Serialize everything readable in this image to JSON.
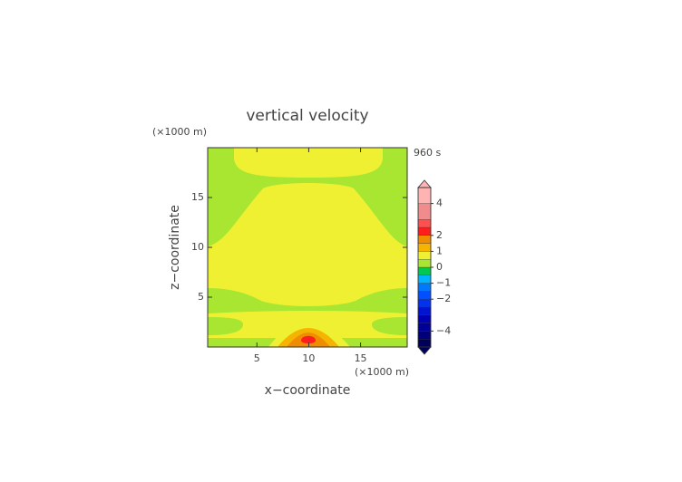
{
  "chart_data": {
    "type": "contour",
    "title": "vertical velocity",
    "time_label": "960 s",
    "xlabel": "x−coordinate",
    "ylabel": "z−coordinate",
    "x_unit": "(×1000 m)",
    "y_unit": "(×1000 m)",
    "xlim": [
      0.25,
      19.5
    ],
    "xticks": [
      5,
      10,
      15
    ],
    "ylim": [
      0,
      20
    ],
    "yticks": [
      5,
      10,
      15
    ],
    "colorbar": {
      "lim": [
        -5,
        5
      ],
      "levels": [
        -5,
        -4.5,
        -4,
        -3.5,
        -3,
        -2.5,
        -2,
        -1.5,
        -1,
        -0.5,
        0,
        0.5,
        1,
        1.5,
        2,
        2.5,
        3,
        4,
        5
      ],
      "colors": [
        "#00005a",
        "#000078",
        "#000096",
        "#0000b4",
        "#0014d2",
        "#0032f0",
        "#0050ff",
        "#0078ff",
        "#00b4ff",
        "#00c850",
        "#a8e632",
        "#f0f032",
        "#f5b400",
        "#f08c00",
        "#ff1e1e",
        "#ff5050",
        "#f08c8c",
        "#ffb4b4"
      ],
      "ticks": [
        {
          "value": -4,
          "label": "−4"
        },
        {
          "value": -2,
          "label": "−2"
        },
        {
          "value": -1,
          "label": "−1"
        },
        0,
        1,
        2,
        4
      ]
    }
  }
}
